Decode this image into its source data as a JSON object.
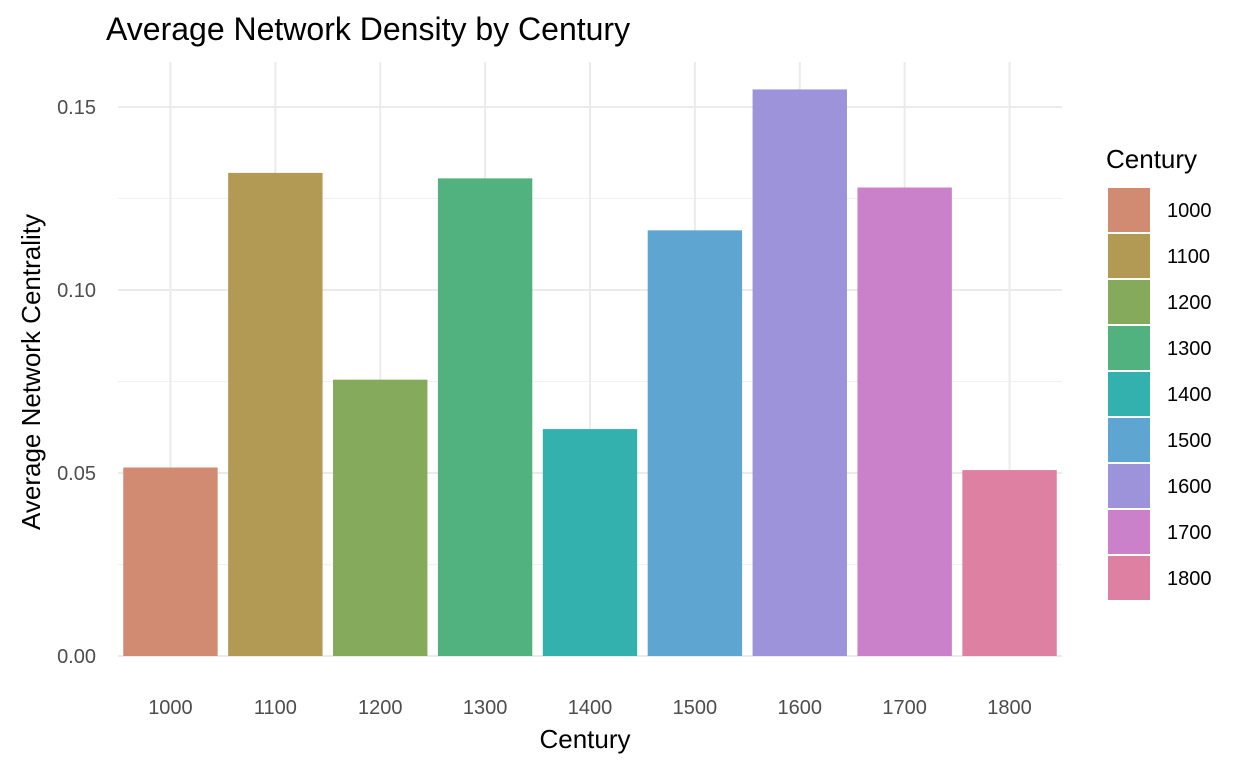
{
  "chart_data": {
    "type": "bar",
    "title": "Average Network Density by Century",
    "xlabel": "Century",
    "ylabel": "Average Network Centrality",
    "categories": [
      "1000",
      "1100",
      "1200",
      "1300",
      "1400",
      "1500",
      "1600",
      "1700",
      "1800"
    ],
    "values": [
      0.0515,
      0.132,
      0.0755,
      0.1305,
      0.062,
      0.1163,
      0.1548,
      0.128,
      0.0508
    ],
    "colors": [
      "#D08B72",
      "#B29A54",
      "#85AA5C",
      "#52B27F",
      "#33B1AF",
      "#5EA5D2",
      "#9D93DA",
      "#CB80CA",
      "#DD80A2"
    ],
    "ylim": [
      0,
      0.16
    ],
    "yticks": [
      0,
      0.05,
      0.1,
      0.15
    ],
    "ytick_labels": [
      "0.00",
      "0.05",
      "0.10",
      "0.15"
    ],
    "grid": true,
    "legend": {
      "title": "Century",
      "position": "right",
      "entries": [
        "1000",
        "1100",
        "1200",
        "1300",
        "1400",
        "1500",
        "1600",
        "1700",
        "1800"
      ]
    }
  }
}
